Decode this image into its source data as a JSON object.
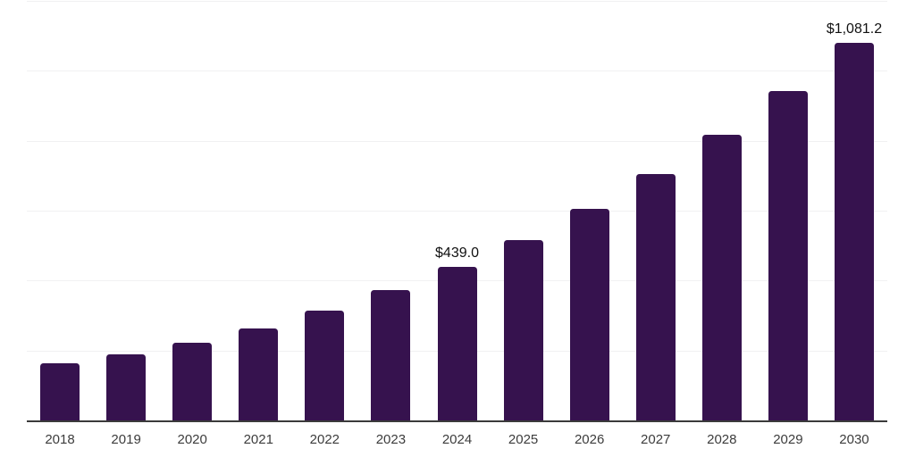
{
  "chart_data": {
    "type": "bar",
    "categories": [
      "2018",
      "2019",
      "2020",
      "2021",
      "2022",
      "2023",
      "2024",
      "2025",
      "2026",
      "2027",
      "2028",
      "2029",
      "2030"
    ],
    "values": [
      164,
      190,
      221,
      262,
      313,
      372,
      439.0,
      517,
      604,
      704,
      817,
      942,
      1081.2
    ],
    "value_labels": [
      null,
      null,
      null,
      null,
      null,
      null,
      "$439.0",
      null,
      null,
      null,
      null,
      null,
      "$1,081.2"
    ],
    "title": "",
    "xlabel": "",
    "ylabel": "",
    "ylim": [
      0,
      1200
    ],
    "gridline_step": 200,
    "grid": true,
    "legend_position": "none",
    "colors": {
      "bar": "#36124E",
      "axis_line": "#3B3B3B",
      "gridline": "#F1F1F2",
      "x_tick_label": "#3C3C3C",
      "value_label": "#111111",
      "background": "#FFFFFF"
    }
  }
}
